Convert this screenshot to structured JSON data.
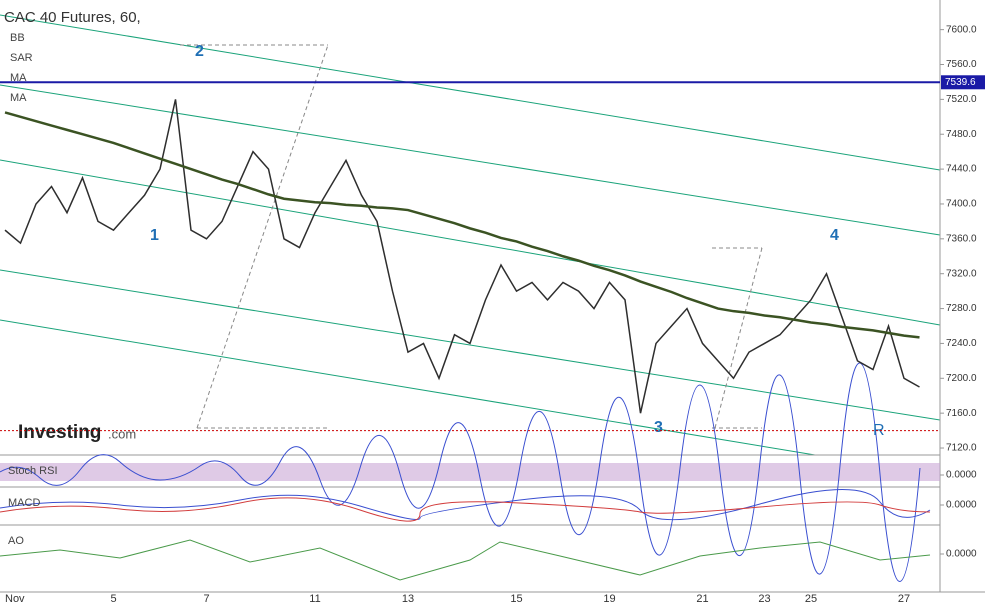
{
  "chart_data": {
    "type": "line",
    "title": "CAC 40 Futures, 60,",
    "indicators": [
      "BB",
      "SAR",
      "MA",
      "MA"
    ],
    "brand": "Investing",
    "brand_suffix": ".com",
    "categories": [
      "Nov",
      null,
      null,
      null,
      null,
      null,
      null,
      "5",
      null,
      null,
      null,
      null,
      null,
      "7",
      null,
      null,
      null,
      null,
      null,
      null,
      "11",
      null,
      null,
      null,
      null,
      null,
      "13",
      null,
      null,
      null,
      null,
      null,
      null,
      "15",
      null,
      null,
      null,
      null,
      null,
      "19",
      null,
      null,
      null,
      null,
      null,
      "21",
      null,
      null,
      null,
      "23",
      null,
      null,
      "25",
      null,
      null,
      null,
      null,
      null,
      "27",
      null
    ],
    "series": [
      {
        "name": "Price",
        "color": "#2e2e2e",
        "values": [
          7370,
          7355,
          7400,
          7420,
          7390,
          7430,
          7380,
          7370,
          7390,
          7410,
          7440,
          7520,
          7370,
          7360,
          7380,
          7420,
          7460,
          7440,
          7360,
          7350,
          7390,
          7420,
          7450,
          7410,
          7380,
          7300,
          7230,
          7240,
          7200,
          7250,
          7240,
          7290,
          7330,
          7300,
          7310,
          7290,
          7310,
          7300,
          7280,
          7310,
          7290,
          7160,
          7240,
          7260,
          7280,
          7240,
          7220,
          7200,
          7230,
          7240,
          7250,
          7270,
          7290,
          7320,
          7270,
          7220,
          7210,
          7260,
          7200,
          7190
        ]
      },
      {
        "name": "MA",
        "color": "#3b5323",
        "values": [
          7505,
          7500,
          7495,
          7490,
          7485,
          7480,
          7475,
          7470,
          7464,
          7458,
          7452,
          7446,
          7440,
          7434,
          7428,
          7423,
          7417,
          7411,
          7406,
          7404,
          7402,
          7401,
          7399,
          7398,
          7396,
          7395,
          7393,
          7388,
          7383,
          7378,
          7372,
          7367,
          7361,
          7357,
          7351,
          7346,
          7340,
          7335,
          7329,
          7324,
          7318,
          7311,
          7305,
          7299,
          7292,
          7286,
          7280,
          7277,
          7275,
          7272,
          7270,
          7267,
          7264,
          7262,
          7259,
          7257,
          7255,
          7252,
          7249,
          7247
        ]
      }
    ],
    "ylim": [
      7112,
      7634
    ],
    "yticks": [
      {
        "value": 7600,
        "label": "7600.0"
      },
      {
        "value": 7560,
        "label": "7560.0"
      },
      {
        "value": 7520,
        "label": "7520.0"
      },
      {
        "value": 7480,
        "label": "7480.0"
      },
      {
        "value": 7440,
        "label": "7440.0"
      },
      {
        "value": 7400,
        "label": "7400.0"
      },
      {
        "value": 7360,
        "label": "7360.0"
      },
      {
        "value": 7320,
        "label": "7320.0"
      },
      {
        "value": 7280,
        "label": "7280.0"
      },
      {
        "value": 7240,
        "label": "7240.0"
      },
      {
        "value": 7200,
        "label": "7200.0"
      },
      {
        "value": 7160,
        "label": "7160.0"
      },
      {
        "value": 7120,
        "label": "7120.0"
      }
    ],
    "hline": 7539.6,
    "hline_color": "#1a1aa6",
    "price_line": 7140,
    "annotations": [
      "1",
      "2",
      "3",
      "4",
      "R"
    ],
    "panels": [
      {
        "name": "Stoch RSI",
        "yticks": [
          {
            "value": 0,
            "label": "0.0000"
          }
        ]
      },
      {
        "name": "MACD",
        "yticks": [
          {
            "value": 0,
            "label": "0.0000"
          }
        ]
      },
      {
        "name": "AO",
        "yticks": [
          {
            "value": 0,
            "label": "0.0000"
          }
        ]
      }
    ]
  }
}
